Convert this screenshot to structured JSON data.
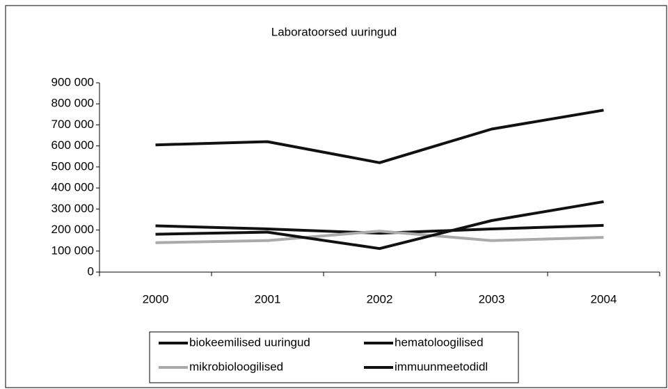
{
  "chart_data": {
    "type": "line",
    "title": "Laboratoorsed uuringud",
    "categories": [
      "2000",
      "2001",
      "2002",
      "2003",
      "2004"
    ],
    "series": [
      {
        "name": "biokeemilised uuringud",
        "color": "#111111",
        "values": [
          605000,
          620000,
          520000,
          680000,
          770000
        ]
      },
      {
        "name": "hematoloogilised",
        "color": "#111111",
        "values": [
          220000,
          205000,
          185000,
          205000,
          222000
        ]
      },
      {
        "name": "mikrobioloogilised",
        "color": "#aaaaaa",
        "values": [
          140000,
          150000,
          195000,
          150000,
          165000
        ]
      },
      {
        "name": "immuunmeetodidl",
        "color": "#111111",
        "values": [
          180000,
          190000,
          112000,
          245000,
          335000
        ]
      }
    ],
    "ylim": [
      0,
      900000
    ],
    "yticks": [
      0,
      {
        "value": 100000,
        "label": "100 000"
      },
      {
        "value": 200000,
        "label": "200 000"
      },
      {
        "value": 300000,
        "label": "300 000"
      },
      {
        "value": 400000,
        "label": "400 000"
      },
      {
        "value": 500000,
        "label": "500 000"
      },
      {
        "value": 600000,
        "label": "600 000"
      },
      {
        "value": 700000,
        "label": "700 000"
      },
      {
        "value": 800000,
        "label": "800 000"
      },
      {
        "value": 900000,
        "label": "900 000"
      }
    ],
    "legend": "bottom"
  }
}
